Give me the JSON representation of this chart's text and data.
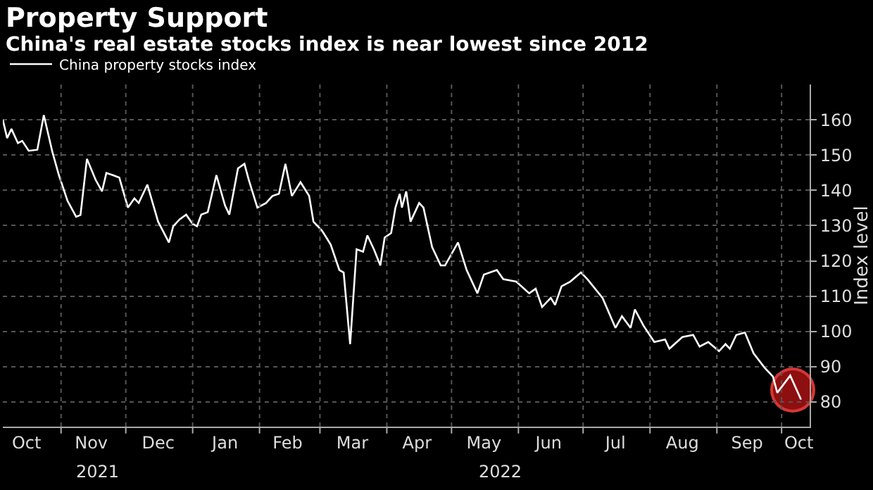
{
  "chart_data": {
    "type": "line",
    "title": "Property Support",
    "subtitle": "China's real estate stocks index is near lowest since 2012",
    "ylabel": "Index level",
    "x": [
      "2021-10-05",
      "2021-10-07",
      "2021-10-09",
      "2021-10-12",
      "2021-10-14",
      "2021-10-17",
      "2021-10-21",
      "2021-10-24",
      "2021-10-28",
      "2021-10-31",
      "2021-11-04",
      "2021-11-08",
      "2021-11-10",
      "2021-11-13",
      "2021-11-17",
      "2021-11-20",
      "2021-11-22",
      "2021-11-25",
      "2021-11-28",
      "2021-12-02",
      "2021-12-05",
      "2021-12-07",
      "2021-12-11",
      "2021-12-16",
      "2021-12-21",
      "2021-12-23",
      "2021-12-26",
      "2021-12-29",
      "2022-01-01",
      "2022-01-03",
      "2022-01-05",
      "2022-01-08",
      "2022-01-12",
      "2022-01-16",
      "2022-01-18",
      "2022-01-22",
      "2022-01-25",
      "2022-01-27",
      "2022-01-31",
      "2022-02-04",
      "2022-02-07",
      "2022-02-10",
      "2022-02-13",
      "2022-02-16",
      "2022-02-20",
      "2022-02-24",
      "2022-02-26",
      "2022-03-02",
      "2022-03-04",
      "2022-03-06",
      "2022-03-10",
      "2022-03-12",
      "2022-03-15",
      "2022-03-18",
      "2022-03-21",
      "2022-03-23",
      "2022-03-26",
      "2022-03-29",
      "2022-03-31",
      "2022-04-03",
      "2022-04-05",
      "2022-04-07",
      "2022-04-08",
      "2022-04-10",
      "2022-04-12",
      "2022-04-16",
      "2022-04-18",
      "2022-04-22",
      "2022-04-26",
      "2022-04-28",
      "2022-05-04",
      "2022-05-08",
      "2022-05-13",
      "2022-05-16",
      "2022-05-22",
      "2022-05-25",
      "2022-05-31",
      "2022-06-06",
      "2022-06-09",
      "2022-06-12",
      "2022-06-16",
      "2022-06-18",
      "2022-06-21",
      "2022-06-25",
      "2022-06-30",
      "2022-07-03",
      "2022-07-10",
      "2022-07-16",
      "2022-07-19",
      "2022-07-23",
      "2022-07-25",
      "2022-07-29",
      "2022-08-03",
      "2022-08-08",
      "2022-08-10",
      "2022-08-16",
      "2022-08-21",
      "2022-08-24",
      "2022-08-28",
      "2022-09-02",
      "2022-09-05",
      "2022-09-07",
      "2022-09-10",
      "2022-09-14",
      "2022-09-18",
      "2022-09-23",
      "2022-09-27",
      "2022-09-29",
      "2022-10-05",
      "2022-10-10"
    ],
    "series": [
      {
        "name": "China property stocks index",
        "color": "#ffffff",
        "values": [
          160,
          154.8,
          157.4,
          153.4,
          154,
          151.2,
          151.5,
          161.3,
          150.8,
          144.3,
          137,
          132.5,
          133,
          148.9,
          143,
          139.7,
          144.9,
          144.3,
          143.6,
          135.1,
          137.7,
          136.4,
          141.6,
          131.1,
          125.2,
          129.8,
          131.8,
          133.1,
          130.5,
          129.8,
          133.1,
          133.8,
          144.3,
          135.7,
          133.1,
          146.2,
          147.5,
          143,
          135.1,
          136.4,
          138.4,
          139,
          147.5,
          138.4,
          142.3,
          138.4,
          131.1,
          128.5,
          126.6,
          124.6,
          117.4,
          116.7,
          96.4,
          123.3,
          122.6,
          127.2,
          123.3,
          118.7,
          126.6,
          127.9,
          135.1,
          139,
          135.1,
          139.7,
          131.1,
          136.4,
          135.1,
          123.9,
          118.7,
          118.7,
          125.2,
          117.4,
          110.8,
          116.1,
          117.4,
          114.8,
          114.1,
          110.8,
          112.1,
          106.9,
          109.5,
          107.5,
          112.8,
          114.1,
          116.7,
          114.8,
          109.5,
          101,
          104.3,
          101,
          106.2,
          101.6,
          97,
          97.7,
          95.1,
          98.4,
          99,
          95.7,
          97,
          94.4,
          96.4,
          95.1,
          99,
          99.7,
          93.8,
          89.8,
          87.2,
          82.6,
          87.5,
          80.7
        ]
      }
    ],
    "xlim": [
      "2021-10-05",
      "2022-10-14"
    ],
    "xticks": [
      {
        "value": "2021-10-16",
        "label": "Oct"
      },
      {
        "value": "2021-11-01",
        "label": null
      },
      {
        "value": "2021-11-15",
        "label": "Nov"
      },
      {
        "value": "2021-12-01",
        "label": null
      },
      {
        "value": "2021-12-16",
        "label": "Dec"
      },
      {
        "value": "2022-01-01",
        "label": null
      },
      {
        "value": "2022-01-16",
        "label": "Jan"
      },
      {
        "value": "2022-02-01",
        "label": null
      },
      {
        "value": "2022-02-14",
        "label": "Feb"
      },
      {
        "value": "2022-03-01",
        "label": null
      },
      {
        "value": "2022-03-16",
        "label": "Mar"
      },
      {
        "value": "2022-04-01",
        "label": null
      },
      {
        "value": "2022-04-15",
        "label": "Apr"
      },
      {
        "value": "2022-05-01",
        "label": null
      },
      {
        "value": "2022-05-16",
        "label": "May"
      },
      {
        "value": "2022-06-01",
        "label": null
      },
      {
        "value": "2022-06-15",
        "label": "Jun"
      },
      {
        "value": "2022-07-01",
        "label": null
      },
      {
        "value": "2022-07-16",
        "label": "Jul"
      },
      {
        "value": "2022-08-01",
        "label": null
      },
      {
        "value": "2022-08-16",
        "label": "Aug"
      },
      {
        "value": "2022-09-01",
        "label": null
      },
      {
        "value": "2022-09-15",
        "label": "Sep"
      },
      {
        "value": "2022-10-01",
        "label": null
      },
      {
        "value": "2022-10-09",
        "label": "Oct"
      }
    ],
    "ylim": [
      73,
      170
    ],
    "yticks": [
      80,
      90,
      100,
      110,
      120,
      130,
      140,
      150,
      160
    ],
    "annotations": [
      "2021",
      "2022"
    ],
    "grid": true,
    "legend": "top left",
    "marker": "none",
    "line_style": "solid"
  }
}
